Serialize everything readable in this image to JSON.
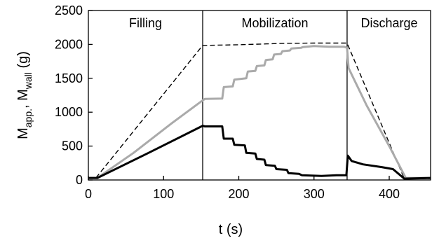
{
  "chart_data": {
    "type": "line",
    "xlabel": "t (s)",
    "ylabel_main": "M",
    "ylabel_sub1": "app.",
    "ylabel_mid": ", M",
    "ylabel_sub2": "wall",
    "ylabel_unit": " (g)",
    "xlim": [
      0,
      455
    ],
    "ylim": [
      0,
      2500
    ],
    "xticks": [
      0,
      100,
      200,
      300,
      400
    ],
    "yticks": [
      0,
      500,
      1000,
      1500,
      2000,
      2500
    ],
    "phase_boundaries": [
      152,
      344
    ],
    "phases": [
      {
        "label": "Filling",
        "x_center": 76
      },
      {
        "label": "Mobilization",
        "x_center": 248
      },
      {
        "label": "Discharge",
        "x_center": 400
      }
    ],
    "series": [
      {
        "style": "dashed",
        "color": "#000000",
        "x": [
          0,
          10,
          152,
          200,
          260,
          300,
          344,
          420,
          455
        ],
        "y": [
          30,
          30,
          1985,
          1995,
          2015,
          2020,
          2020,
          20,
          20
        ]
      },
      {
        "style": "solid",
        "color": "#aaaaaa",
        "x": [
          0,
          12,
          60,
          110,
          152,
          155,
          178,
          180,
          192,
          194,
          210,
          212,
          222,
          224,
          234,
          236,
          245,
          247,
          256,
          258,
          268,
          270,
          283,
          285,
          300,
          320,
          340,
          344,
          346,
          370,
          400,
          422,
          455
        ],
        "y": [
          30,
          30,
          400,
          830,
          1175,
          1195,
          1200,
          1370,
          1380,
          1480,
          1500,
          1600,
          1610,
          1680,
          1690,
          1770,
          1780,
          1850,
          1860,
          1900,
          1910,
          1940,
          1950,
          1960,
          1975,
          1965,
          1965,
          1950,
          1650,
          1100,
          500,
          30,
          30
        ]
      },
      {
        "style": "solid",
        "color": "#000000",
        "x": [
          0,
          12,
          80,
          152,
          155,
          178,
          180,
          192,
          194,
          208,
          210,
          222,
          224,
          234,
          236,
          248,
          250,
          264,
          266,
          280,
          284,
          310,
          330,
          343,
          345,
          350,
          365,
          390,
          405,
          420,
          455
        ],
        "y": [
          30,
          30,
          400,
          800,
          790,
          790,
          610,
          610,
          520,
          510,
          400,
          390,
          310,
          300,
          220,
          210,
          160,
          150,
          100,
          90,
          70,
          60,
          70,
          70,
          360,
          280,
          230,
          190,
          160,
          20,
          30
        ]
      }
    ]
  }
}
